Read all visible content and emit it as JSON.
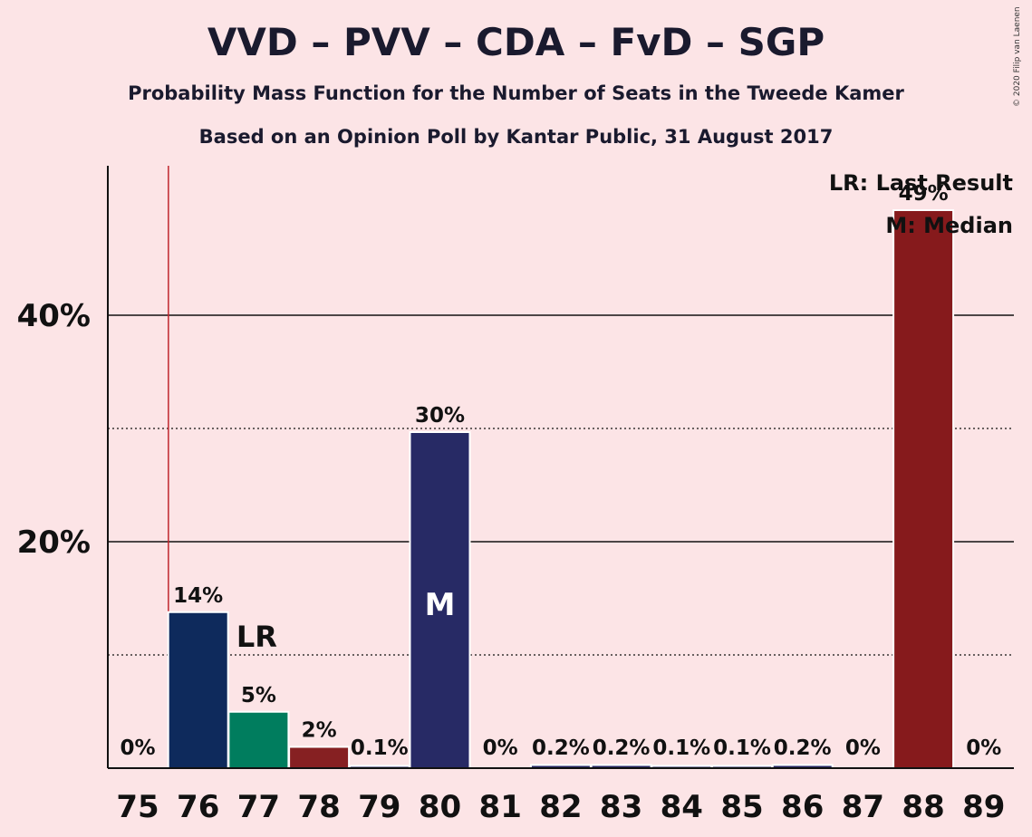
{
  "title": "VVD – PVV – CDA – FvD – SGP",
  "subtitle_1": "Probability Mass Function for the Number of Seats in the Tweede Kamer",
  "subtitle_2": "Based on an Opinion Poll by Kantar Public, 31 August 2017",
  "copyright": "© 2020 Filip van Laenen",
  "legend": {
    "last_result": "LR: Last Result",
    "median": "M: Median"
  },
  "markers": {
    "last_result_label": "LR",
    "median_label": "M"
  },
  "colors": {
    "background": "#fce4e6",
    "vvd": "#0e2a5c",
    "pvv": "#007d5e",
    "cda": "#862022",
    "fvd": "#272a65",
    "sgp": "#861a1c",
    "last_result_line": "#c0262d"
  },
  "chart_data": {
    "type": "bar",
    "categories": [
      "75",
      "76",
      "77",
      "78",
      "79",
      "80",
      "81",
      "82",
      "83",
      "84",
      "85",
      "86",
      "87",
      "88",
      "89"
    ],
    "values": [
      0,
      13.7,
      4.9,
      1.8,
      0.1,
      29.6,
      0,
      0.2,
      0.2,
      0.1,
      0.1,
      0.2,
      0,
      49.2,
      0
    ],
    "value_labels": [
      "0%",
      "14%",
      "5%",
      "2%",
      "0.1%",
      "30%",
      "0%",
      "0.2%",
      "0.2%",
      "0.1%",
      "0.1%",
      "0.2%",
      "0%",
      "49%",
      "0%"
    ],
    "bar_colors": [
      "#0e2a5c",
      "#0e2a5c",
      "#007d5e",
      "#862022",
      "#272a65",
      "#272a65",
      "#272a65",
      "#272a65",
      "#272a65",
      "#272a65",
      "#272a65",
      "#272a65",
      "#861a1c",
      "#861a1c",
      "#861a1c"
    ],
    "y_ticks_major": [
      20,
      40
    ],
    "y_tick_labels": [
      "20%",
      "40%"
    ],
    "y_ticks_minor": [
      10,
      30
    ],
    "ylim": [
      0,
      53.5
    ],
    "last_result": "75.5",
    "last_result_label_at": "77",
    "median_at": "80",
    "grid": true,
    "legend_position": "top-right"
  }
}
